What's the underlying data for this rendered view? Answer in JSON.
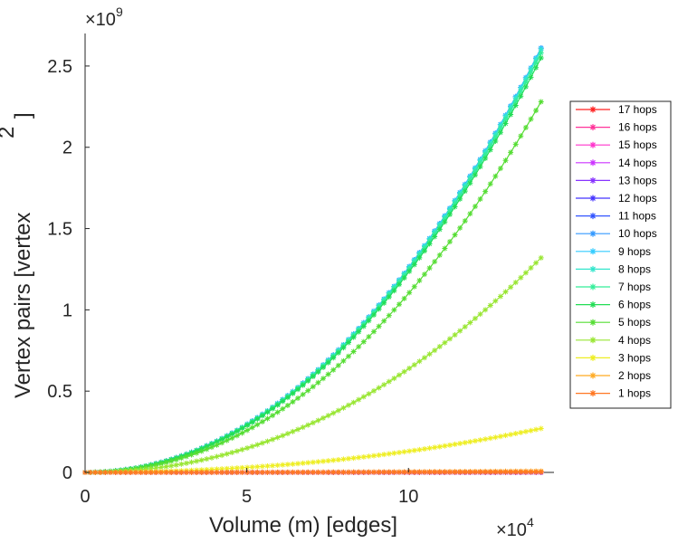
{
  "chart_data": {
    "type": "line",
    "xlabel": "Volume (m) [edges]",
    "ylabel": "Vertex pairs [vertex",
    "ylabel_superscript": "2",
    "ylabel_close": "]",
    "x_multiplier": {
      "base": "×10",
      "exponent": "4"
    },
    "y_multiplier": {
      "base": "×10",
      "exponent": "9"
    },
    "xlim": [
      0,
      14.5
    ],
    "ylim": [
      0,
      2.7
    ],
    "x_ticks": [
      0,
      5,
      10
    ],
    "x_tick_labels": [
      "0",
      "5",
      "10"
    ],
    "y_ticks": [
      0,
      0.5,
      1,
      1.5,
      2,
      2.5
    ],
    "y_tick_labels": [
      "0",
      "0.5",
      "1",
      "1.5",
      "2",
      "2.5"
    ],
    "grid": false,
    "legend_position": "right",
    "x_end": 14.1,
    "series": [
      {
        "name": "17 hops",
        "color": "#ff2020",
        "y_end": 0.0
      },
      {
        "name": "16 hops",
        "color": "#ff3399",
        "y_end": 0.0
      },
      {
        "name": "15 hops",
        "color": "#ff33cc",
        "y_end": 0.0
      },
      {
        "name": "14 hops",
        "color": "#cc33ff",
        "y_end": 0.0
      },
      {
        "name": "13 hops",
        "color": "#8833ff",
        "y_end": 0.0
      },
      {
        "name": "12 hops",
        "color": "#4433ff",
        "y_end": 2.61
      },
      {
        "name": "11 hops",
        "color": "#3355ff",
        "y_end": 2.61
      },
      {
        "name": "10 hops",
        "color": "#3399ff",
        "y_end": 2.61
      },
      {
        "name": "9 hops",
        "color": "#33ccff",
        "y_end": 2.61
      },
      {
        "name": "8 hops",
        "color": "#33e6cc",
        "y_end": 2.6
      },
      {
        "name": "7 hops",
        "color": "#33ee99",
        "y_end": 2.58
      },
      {
        "name": "6 hops",
        "color": "#22dd55",
        "y_end": 2.55
      },
      {
        "name": "5 hops",
        "color": "#55dd33",
        "y_end": 2.28
      },
      {
        "name": "4 hops",
        "color": "#99e633",
        "y_end": 1.32
      },
      {
        "name": "3 hops",
        "color": "#eeee22",
        "y_end": 0.27
      },
      {
        "name": "2 hops",
        "color": "#ffaa22",
        "y_end": 0.008
      },
      {
        "name": "1 hops",
        "color": "#ff7722",
        "y_end": 0.002
      }
    ]
  }
}
